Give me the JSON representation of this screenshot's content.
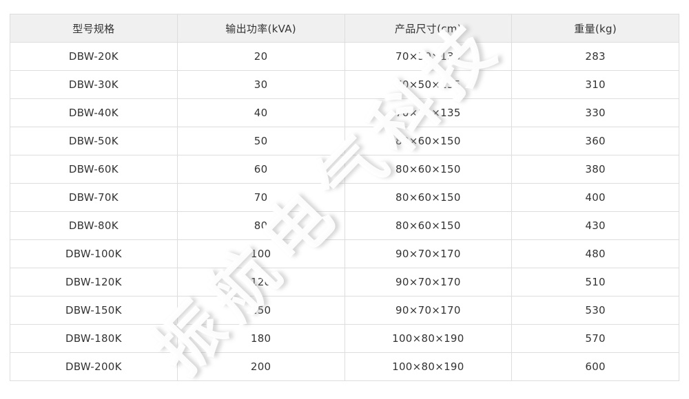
{
  "table": {
    "headers": [
      "型号规格",
      "输出功率(kVA)",
      "产品尺寸(cm)",
      "重量(kg)"
    ],
    "rows": [
      [
        "DBW-20K",
        "20",
        "70×50×135",
        "283"
      ],
      [
        "DBW-30K",
        "30",
        "70×50×135",
        "310"
      ],
      [
        "DBW-40K",
        "40",
        "70×50×135",
        "330"
      ],
      [
        "DBW-50K",
        "50",
        "80×60×150",
        "360"
      ],
      [
        "DBW-60K",
        "60",
        "80×60×150",
        "380"
      ],
      [
        "DBW-70K",
        "70",
        "80×60×150",
        "400"
      ],
      [
        "DBW-80K",
        "80",
        "80×60×150",
        "430"
      ],
      [
        "DBW-100K",
        "100",
        "90×70×170",
        "480"
      ],
      [
        "DBW-120K",
        "120",
        "90×70×170",
        "510"
      ],
      [
        "DBW-150K",
        "150",
        "90×70×170",
        "530"
      ],
      [
        "DBW-180K",
        "180",
        "100×80×190",
        "570"
      ],
      [
        "DBW-200K",
        "200",
        "100×80×190",
        "600"
      ]
    ]
  },
  "watermark": {
    "text": "振航电气科技"
  },
  "colors": {
    "header_bg": "#f0f0f0",
    "border": "#dddddd",
    "text": "#333333",
    "watermark": "#ffffff",
    "page_bg": "#ffffff"
  }
}
